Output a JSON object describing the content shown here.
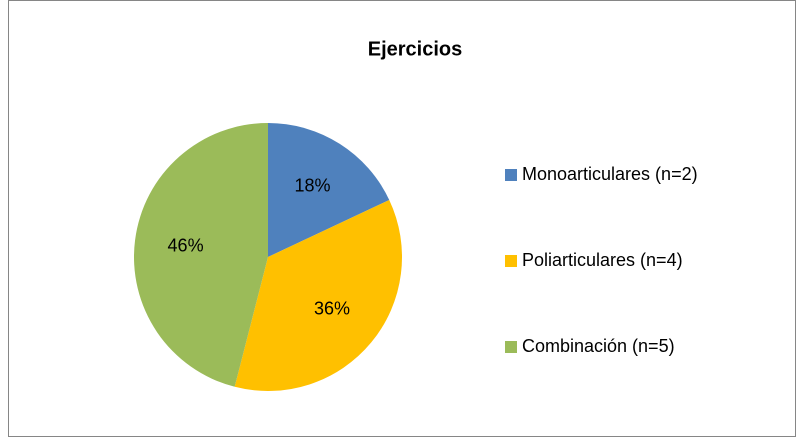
{
  "chart_data": {
    "type": "pie",
    "title": "Ejercicios",
    "categories": [
      "Monoarticulares (n=2)",
      "Poliarticulares (n=4)",
      "Combinación (n=5)"
    ],
    "values": [
      18,
      36,
      46
    ],
    "value_labels": [
      "18%",
      "36%",
      "46%"
    ],
    "colors": [
      "#4f81bd",
      "#ffc000",
      "#9bbb59"
    ],
    "legend": "right"
  }
}
